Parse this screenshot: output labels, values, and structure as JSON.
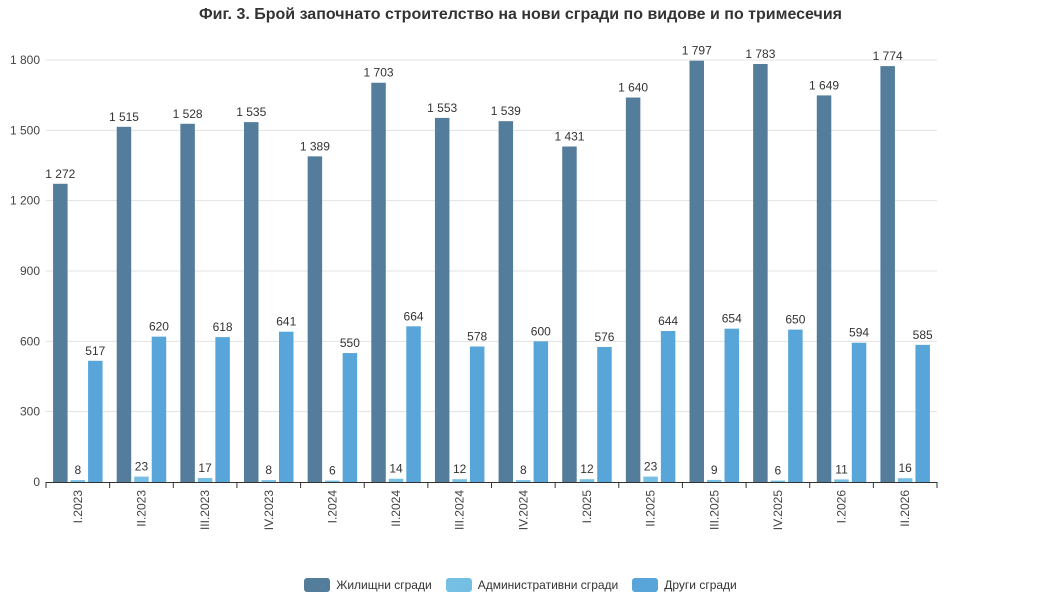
{
  "chart_data": {
    "type": "bar",
    "title": "Фиг. 3. Брой започнато строителство на нови сгради по видове и по тримесечия",
    "categories": [
      "I.2023",
      "II.2023",
      "III.2023",
      "IV.2023",
      "I.2024",
      "II.2024",
      "III.2024",
      "IV.2024",
      "I.2025",
      "II.2025",
      "III.2025",
      "IV.2025",
      "I.2026",
      "II.2026"
    ],
    "series": [
      {
        "name": "Жилищни сгради",
        "color": "#537d9b",
        "values": [
          1272,
          1515,
          1528,
          1535,
          1389,
          1703,
          1553,
          1539,
          1431,
          1640,
          1797,
          1783,
          1649,
          1774
        ],
        "labels": [
          "1 272",
          "1 515",
          "1 528",
          "1 535",
          "1 389",
          "1 703",
          "1 553",
          "1 539",
          "1 431",
          "1 640",
          "1 797",
          "1 783",
          "1 649",
          "1 774"
        ]
      },
      {
        "name": "Административни сгради",
        "color": "#74bfe3",
        "values": [
          8,
          23,
          17,
          8,
          6,
          14,
          12,
          8,
          12,
          23,
          9,
          6,
          11,
          16
        ],
        "labels": [
          "8",
          "23",
          "17",
          "8",
          "6",
          "14",
          "12",
          "8",
          "12",
          "23",
          "9",
          "6",
          "11",
          "16"
        ]
      },
      {
        "name": "Други сгради",
        "color": "#58a6d9",
        "values": [
          517,
          620,
          618,
          641,
          550,
          664,
          578,
          600,
          576,
          644,
          654,
          650,
          594,
          585
        ],
        "labels": [
          "517",
          "620",
          "618",
          "641",
          "550",
          "664",
          "578",
          "600",
          "576",
          "644",
          "654",
          "650",
          "594",
          "585"
        ]
      }
    ],
    "ylim": [
      0,
      1800
    ],
    "yticks": [
      0,
      300,
      600,
      900,
      1200,
      1500,
      1800
    ],
    "ytick_labels": [
      "0",
      "300",
      "600",
      "900",
      "1 200",
      "1 500",
      "1 800"
    ],
    "xlabel": "",
    "ylabel": "",
    "grid": true,
    "legend_position": "bottom-center"
  }
}
